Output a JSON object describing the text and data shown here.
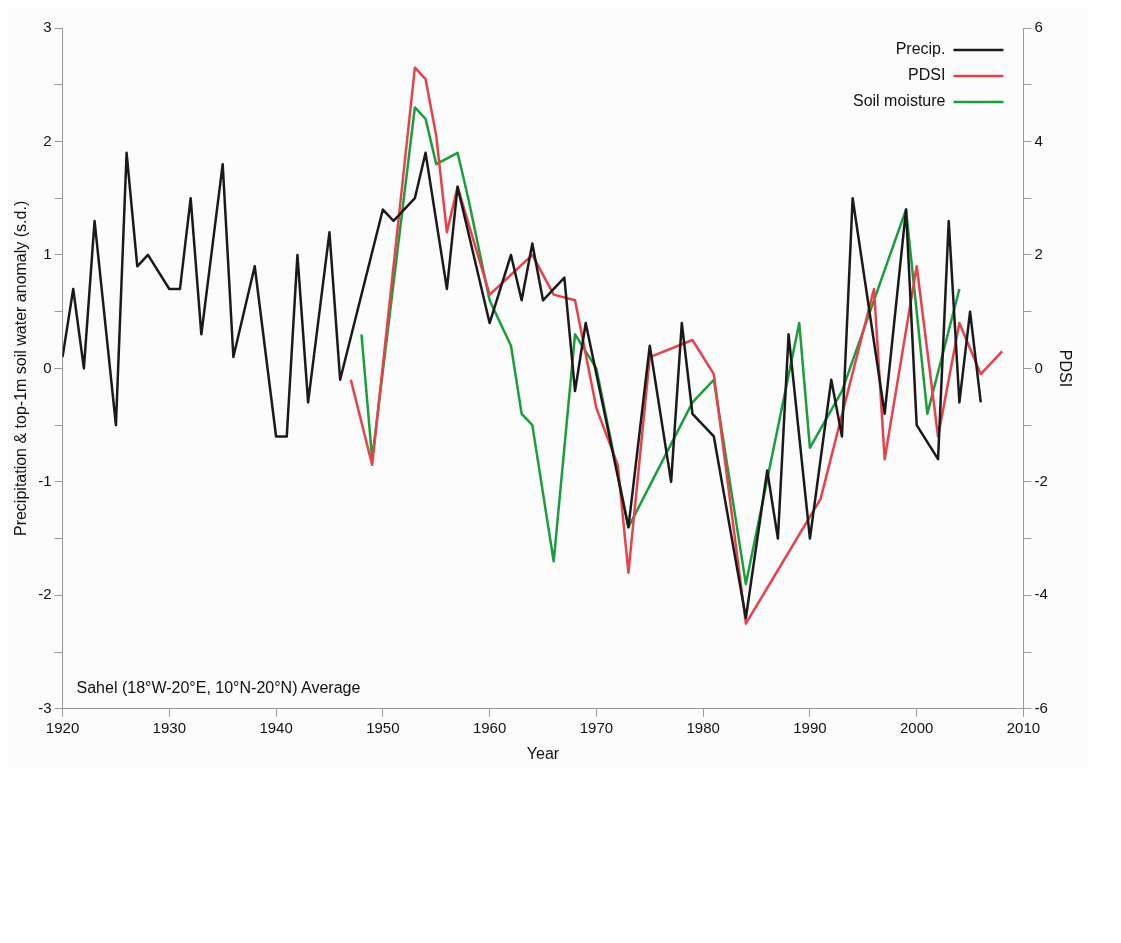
{
  "chart_data": {
    "type": "line",
    "xlabel": "Year",
    "ylabel": "Precipitation & top-1m soil water anomaly (s.d.)",
    "y2label": "PDSI",
    "xlim": [
      1920,
      2010
    ],
    "xticks": [
      1920,
      1930,
      1940,
      1950,
      1960,
      1970,
      1980,
      1990,
      2000,
      2010
    ],
    "ylim": [
      -3,
      3
    ],
    "yticks": [
      -3,
      {
        "value": -2.5,
        "label": null
      },
      -2,
      {
        "value": -1.5,
        "label": null
      },
      -1,
      {
        "value": -0.5,
        "label": null
      },
      0,
      {
        "value": 0.5,
        "label": null
      },
      1,
      {
        "value": 1.5,
        "label": null
      },
      2,
      {
        "value": 2.5,
        "label": null
      },
      3
    ],
    "y2lim": [
      -6,
      6
    ],
    "y2ticks": [
      -6,
      {
        "value": -5,
        "label": null
      },
      -4,
      {
        "value": -3,
        "label": null
      },
      -2,
      {
        "value": -1,
        "label": null
      },
      0,
      {
        "value": 1,
        "label": null
      },
      2,
      {
        "value": 3,
        "label": null
      },
      4,
      {
        "value": 5,
        "label": null
      },
      6
    ],
    "grid": false,
    "legend": "top right",
    "marker": "none",
    "line_style": "solid",
    "annotations": [
      "Sahel (18°W-20°E, 10°N-20°N) Average"
    ],
    "series": [
      {
        "name": "Precip.",
        "color": "#1a1a1a",
        "x": [
          1920,
          1921,
          1922,
          1923,
          1925,
          1926,
          1927,
          1928,
          1930,
          1931,
          1932,
          1933,
          1935,
          1936,
          1938,
          1940,
          1941,
          1942,
          1943,
          1945,
          1946,
          1950,
          1951,
          1953,
          1954,
          1956,
          1957,
          1960,
          1962,
          1963,
          1964,
          1965,
          1967,
          1968,
          1969,
          1973,
          1975,
          1977,
          1978,
          1979,
          1981,
          1984,
          1986,
          1987,
          1988,
          1990,
          1992,
          1993,
          1994,
          1997,
          1999,
          2000,
          2002,
          2003,
          2004,
          2005,
          2006
        ],
        "values": [
          0.1,
          0.7,
          0.0,
          1.3,
          -0.5,
          1.9,
          0.9,
          1.0,
          0.7,
          0.7,
          1.5,
          0.3,
          1.8,
          0.1,
          0.9,
          -0.6,
          -0.6,
          1.0,
          -0.3,
          1.2,
          -0.1,
          1.4,
          1.3,
          1.5,
          1.9,
          0.7,
          1.6,
          0.4,
          1.0,
          0.6,
          1.1,
          0.6,
          0.8,
          -0.2,
          0.4,
          -1.4,
          0.2,
          -1.0,
          0.4,
          -0.4,
          -0.6,
          -2.2,
          -0.9,
          -1.5,
          0.3,
          -1.5,
          -0.1,
          -0.6,
          1.5,
          -0.4,
          1.4,
          -0.5,
          -0.8,
          1.3,
          -0.3,
          0.5,
          -0.3
        ]
      },
      {
        "name": "PDSI",
        "color": "#e8414a",
        "axis": "y2",
        "x": [
          1947,
          1949,
          1953,
          1954,
          1955,
          1956,
          1957,
          1960,
          1964,
          1966,
          1968,
          1970,
          1972,
          1973,
          1975,
          1979,
          1981,
          1984,
          1991,
          1996,
          1997,
          2000,
          2002,
          2004,
          2006,
          2008
        ],
        "values": [
          -0.2,
          -1.7,
          5.3,
          5.1,
          4.1,
          2.4,
          3.2,
          1.3,
          2.0,
          1.3,
          1.2,
          -0.7,
          -1.7,
          -3.6,
          0.2,
          0.5,
          -0.1,
          -4.5,
          -2.3,
          1.4,
          -1.6,
          1.8,
          -1.2,
          0.8,
          -0.1,
          0.3
        ]
      },
      {
        "name": "Soil moisture",
        "color": "#1a9e3c",
        "x": [
          1948,
          1949,
          1953,
          1954,
          1955,
          1957,
          1958,
          1960,
          1962,
          1963,
          1964,
          1966,
          1968,
          1970,
          1973,
          1979,
          1981,
          1984,
          1989,
          1990,
          1993,
          1999,
          2001,
          2004
        ],
        "values": [
          0.3,
          -0.8,
          2.3,
          2.2,
          1.8,
          1.9,
          1.5,
          0.6,
          0.2,
          -0.4,
          -0.5,
          -1.7,
          0.3,
          0.0,
          -1.4,
          -0.3,
          -0.1,
          -1.9,
          0.4,
          -0.7,
          -0.2,
          1.4,
          -0.4,
          0.7
        ]
      }
    ]
  }
}
